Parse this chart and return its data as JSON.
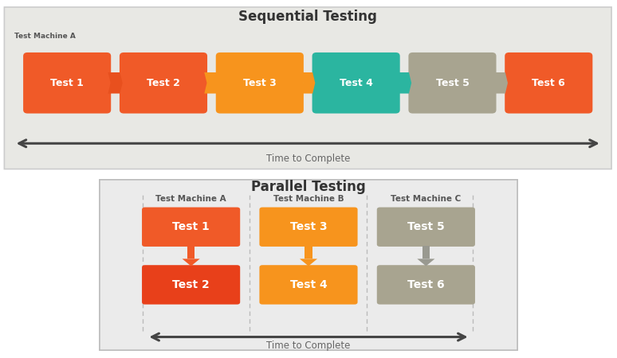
{
  "title_sequential": "Sequential Testing",
  "title_parallel": "Parallel Testing",
  "seq_label": "Test Machine A",
  "par_labels": [
    "Test Machine A",
    "Test Machine B",
    "Test Machine C"
  ],
  "time_label": "Time to Complete",
  "seq_tests": [
    "Test 1",
    "Test 2",
    "Test 3",
    "Test 4",
    "Test 5",
    "Test 6"
  ],
  "seq_colors": [
    "#F05A28",
    "#F05A28",
    "#F7941D",
    "#2BB5A0",
    "#A8A490",
    "#F05A28"
  ],
  "seq_arrow_colors": [
    "#E8501E",
    "#F7941D",
    "#F7941D",
    "#2BB5A0",
    "#A8A490"
  ],
  "par_col_a": [
    "Test 1",
    "Test 2"
  ],
  "par_col_b": [
    "Test 3",
    "Test 4"
  ],
  "par_col_c": [
    "Test 5",
    "Test 6"
  ],
  "par_colors_a": [
    "#F05A28",
    "#E8401A"
  ],
  "par_colors_b": [
    "#F7941D",
    "#F7941D"
  ],
  "par_colors_c": [
    "#A8A490",
    "#A8A490"
  ],
  "bg_seq": "#E8E8E4",
  "bg_par": "#EBEBEB",
  "bg_white": "#FFFFFF",
  "time_label_color": "#666666",
  "title_color": "#333333",
  "arrow_color_orange": "#F05A28",
  "arrow_color_gold": "#F7941D",
  "arrow_color_gray": "#999990",
  "double_arrow_color": "#444444"
}
